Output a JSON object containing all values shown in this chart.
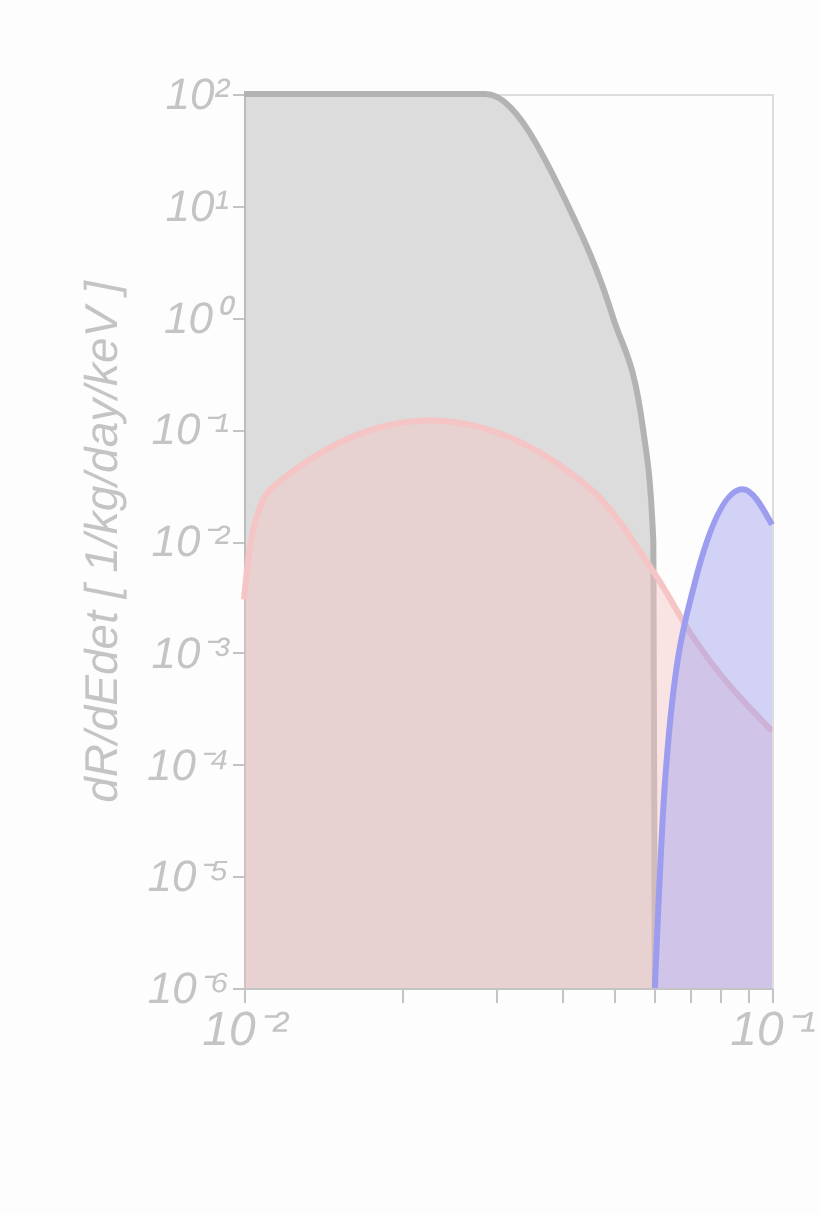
{
  "chart_data": {
    "type": "area",
    "ylabel": "dR/dEdet [ 1/kg/day/keV ]",
    "log": "xy",
    "grid": false,
    "xlim": [
      0.01,
      0.1
    ],
    "ylim": [
      1e-06,
      100
    ],
    "xticks": [
      {
        "value": 0.01,
        "label": "10⁻²"
      },
      {
        "value": 0.02,
        "label": null
      },
      {
        "value": 0.03,
        "label": null
      },
      {
        "value": 0.04,
        "label": null
      },
      {
        "value": 0.05,
        "label": null
      },
      {
        "value": 0.06,
        "label": null
      },
      {
        "value": 0.07,
        "label": null
      },
      {
        "value": 0.08,
        "label": null
      },
      {
        "value": 0.09,
        "label": null
      },
      {
        "value": 0.1,
        "label": "10⁻¹"
      }
    ],
    "yticks": [
      {
        "value": 100,
        "label": "10²"
      },
      {
        "value": 10,
        "label": "10¹"
      },
      {
        "value": 1,
        "label": "10⁰"
      },
      {
        "value": 0.1,
        "label": "10⁻¹"
      },
      {
        "value": 0.01,
        "label": "10⁻²"
      },
      {
        "value": 0.001,
        "label": "10⁻³"
      },
      {
        "value": 0.0001,
        "label": "10⁻⁴"
      },
      {
        "value": 1e-05,
        "label": "10⁻⁵"
      },
      {
        "value": 1e-06,
        "label": "10⁻⁶"
      }
    ],
    "series": [
      {
        "color": "#b3b3b3",
        "x": [
          0.01,
          0.0287,
          0.0411,
          0.05,
          0.057,
          0.0596,
          0.06
        ],
        "values": [
          100,
          100,
          10,
          1,
          0.1,
          0.01,
          1e-06
        ]
      },
      {
        "color": "#f5c4c4",
        "x": [
          0.01,
          0.0103,
          0.0113,
          0.0225,
          0.0454,
          0.0608,
          0.0711,
          0.1
        ],
        "values": [
          0.003,
          0.01,
          0.03,
          0.12,
          0.029,
          0.0046,
          0.00135,
          0.0002
        ]
      },
      {
        "color": "#9d9df0",
        "x": [
          0.06,
          0.0627,
          0.0711,
          0.088,
          0.1
        ],
        "values": [
          1e-06,
          6.9e-05,
          0.0039,
          0.029,
          0.014
        ]
      }
    ]
  }
}
